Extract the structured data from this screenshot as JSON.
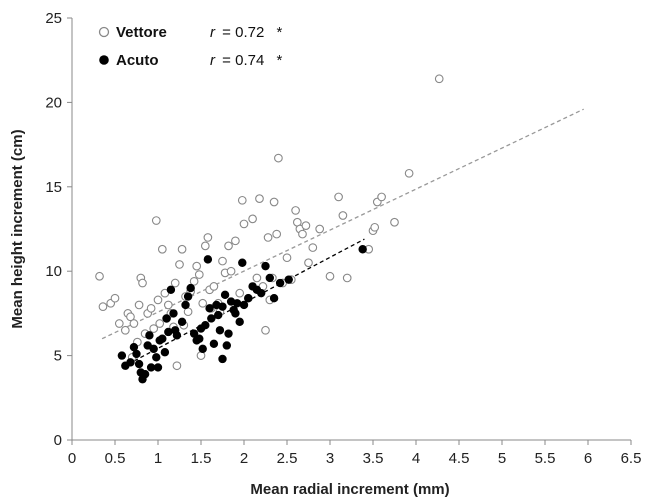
{
  "chart_data": {
    "type": "scatter",
    "xlabel": "Mean radial increment (mm)",
    "ylabel": "Mean height increment (cm)",
    "xlim": [
      0,
      6.5
    ],
    "ylim": [
      0,
      25
    ],
    "xticks": [
      0,
      0.5,
      1,
      1.5,
      2,
      2.5,
      3,
      3.5,
      4,
      4.5,
      5,
      5.5,
      6,
      6.5
    ],
    "xtick_labels": [
      "0",
      "0.5",
      "1",
      "1.5",
      "2",
      "2.5",
      "3",
      "3.5",
      "4",
      "4.5",
      "5",
      "5.5",
      "6",
      "6.5"
    ],
    "yticks": [
      0,
      5,
      10,
      15,
      20,
      25
    ],
    "ytick_labels": [
      "0",
      "5",
      "10",
      "15",
      "20",
      "25"
    ],
    "grid": false,
    "legend_position": "top-left",
    "series": [
      {
        "name": "Vettore",
        "marker": "open-circle",
        "color": "#888888",
        "r_label": "r",
        "r_value": "= 0.72",
        "significance": "*",
        "trendline": {
          "x": [
            0.35,
            5.95
          ],
          "y": [
            6.0,
            19.6
          ],
          "color": "#999999",
          "style": "dashed"
        },
        "points": [
          [
            0.32,
            9.7
          ],
          [
            0.36,
            7.9
          ],
          [
            0.45,
            8.1
          ],
          [
            0.5,
            8.4
          ],
          [
            0.55,
            6.9
          ],
          [
            0.62,
            6.5
          ],
          [
            0.65,
            7.5
          ],
          [
            0.68,
            7.3
          ],
          [
            0.7,
            4.9
          ],
          [
            0.72,
            6.9
          ],
          [
            0.76,
            5.8
          ],
          [
            0.78,
            8.0
          ],
          [
            0.8,
            9.6
          ],
          [
            0.82,
            9.3
          ],
          [
            0.85,
            6.3
          ],
          [
            0.88,
            7.5
          ],
          [
            0.92,
            7.8
          ],
          [
            0.95,
            6.6
          ],
          [
            0.98,
            13.0
          ],
          [
            1.0,
            8.3
          ],
          [
            1.02,
            6.9
          ],
          [
            1.05,
            11.3
          ],
          [
            1.08,
            8.7
          ],
          [
            1.1,
            7.2
          ],
          [
            1.12,
            8.0
          ],
          [
            1.15,
            7.5
          ],
          [
            1.18,
            6.7
          ],
          [
            1.2,
            9.3
          ],
          [
            1.22,
            4.4
          ],
          [
            1.25,
            10.4
          ],
          [
            1.28,
            11.3
          ],
          [
            1.3,
            6.8
          ],
          [
            1.32,
            8.5
          ],
          [
            1.35,
            7.6
          ],
          [
            1.38,
            8.8
          ],
          [
            1.42,
            9.4
          ],
          [
            1.45,
            10.3
          ],
          [
            1.48,
            9.8
          ],
          [
            1.5,
            5.0
          ],
          [
            1.52,
            8.1
          ],
          [
            1.55,
            11.5
          ],
          [
            1.58,
            12.0
          ],
          [
            1.6,
            8.9
          ],
          [
            1.62,
            7.8
          ],
          [
            1.65,
            9.1
          ],
          [
            1.7,
            8.1
          ],
          [
            1.72,
            7.6
          ],
          [
            1.75,
            10.6
          ],
          [
            1.78,
            9.9
          ],
          [
            1.82,
            11.5
          ],
          [
            1.85,
            10.0
          ],
          [
            1.9,
            11.8
          ],
          [
            1.95,
            8.7
          ],
          [
            1.98,
            14.2
          ],
          [
            2.0,
            12.8
          ],
          [
            2.05,
            8.4
          ],
          [
            2.1,
            13.1
          ],
          [
            2.15,
            9.6
          ],
          [
            2.18,
            14.3
          ],
          [
            2.22,
            9.1
          ],
          [
            2.25,
            6.5
          ],
          [
            2.28,
            12.0
          ],
          [
            2.3,
            8.3
          ],
          [
            2.33,
            9.6
          ],
          [
            2.35,
            14.1
          ],
          [
            2.38,
            12.2
          ],
          [
            2.4,
            16.7
          ],
          [
            2.45,
            9.3
          ],
          [
            2.5,
            10.8
          ],
          [
            2.55,
            9.5
          ],
          [
            2.6,
            13.6
          ],
          [
            2.62,
            12.9
          ],
          [
            2.65,
            12.5
          ],
          [
            2.68,
            12.2
          ],
          [
            2.72,
            12.7
          ],
          [
            2.75,
            10.5
          ],
          [
            2.8,
            11.4
          ],
          [
            2.88,
            12.5
          ],
          [
            3.0,
            9.7
          ],
          [
            3.1,
            14.4
          ],
          [
            3.15,
            13.3
          ],
          [
            3.2,
            9.6
          ],
          [
            3.45,
            11.3
          ],
          [
            3.5,
            12.4
          ],
          [
            3.52,
            12.6
          ],
          [
            3.55,
            14.1
          ],
          [
            3.6,
            14.4
          ],
          [
            3.75,
            12.9
          ],
          [
            3.92,
            15.8
          ],
          [
            4.27,
            21.4
          ]
        ]
      },
      {
        "name": "Acuto",
        "marker": "filled-circle",
        "color": "#000000",
        "r_label": "r",
        "r_value": "= 0.74",
        "significance": "*",
        "trendline": {
          "x": [
            0.58,
            3.4
          ],
          "y": [
            4.3,
            11.9
          ],
          "color": "#000000",
          "style": "dashed"
        },
        "points": [
          [
            0.58,
            5.0
          ],
          [
            0.62,
            4.4
          ],
          [
            0.68,
            4.6
          ],
          [
            0.72,
            5.5
          ],
          [
            0.75,
            5.1
          ],
          [
            0.78,
            4.5
          ],
          [
            0.8,
            4.0
          ],
          [
            0.82,
            3.6
          ],
          [
            0.85,
            3.9
          ],
          [
            0.88,
            5.6
          ],
          [
            0.9,
            6.2
          ],
          [
            0.92,
            4.3
          ],
          [
            0.95,
            5.4
          ],
          [
            0.98,
            4.9
          ],
          [
            1.0,
            4.3
          ],
          [
            1.02,
            5.9
          ],
          [
            1.05,
            6.0
          ],
          [
            1.08,
            5.2
          ],
          [
            1.1,
            7.2
          ],
          [
            1.12,
            6.4
          ],
          [
            1.15,
            8.9
          ],
          [
            1.18,
            7.5
          ],
          [
            1.2,
            6.5
          ],
          [
            1.22,
            6.2
          ],
          [
            1.28,
            7.0
          ],
          [
            1.32,
            8.0
          ],
          [
            1.35,
            8.5
          ],
          [
            1.38,
            9.0
          ],
          [
            1.42,
            6.3
          ],
          [
            1.45,
            5.9
          ],
          [
            1.48,
            6.0
          ],
          [
            1.5,
            6.6
          ],
          [
            1.52,
            5.4
          ],
          [
            1.55,
            6.8
          ],
          [
            1.58,
            10.7
          ],
          [
            1.6,
            7.8
          ],
          [
            1.62,
            7.2
          ],
          [
            1.65,
            5.7
          ],
          [
            1.68,
            8.0
          ],
          [
            1.7,
            7.4
          ],
          [
            1.72,
            6.5
          ],
          [
            1.75,
            7.9
          ],
          [
            1.78,
            8.6
          ],
          [
            1.8,
            5.6
          ],
          [
            1.82,
            6.3
          ],
          [
            1.85,
            8.2
          ],
          [
            1.88,
            7.7
          ],
          [
            1.9,
            7.5
          ],
          [
            1.92,
            8.1
          ],
          [
            1.95,
            7.0
          ],
          [
            1.98,
            10.5
          ],
          [
            2.0,
            8.0
          ],
          [
            2.05,
            8.4
          ],
          [
            2.1,
            9.1
          ],
          [
            2.15,
            8.9
          ],
          [
            2.2,
            8.7
          ],
          [
            2.25,
            10.3
          ],
          [
            2.3,
            9.6
          ],
          [
            2.35,
            8.4
          ],
          [
            2.42,
            9.3
          ],
          [
            2.52,
            9.5
          ],
          [
            1.75,
            4.8
          ],
          [
            3.38,
            11.3
          ]
        ]
      }
    ]
  }
}
